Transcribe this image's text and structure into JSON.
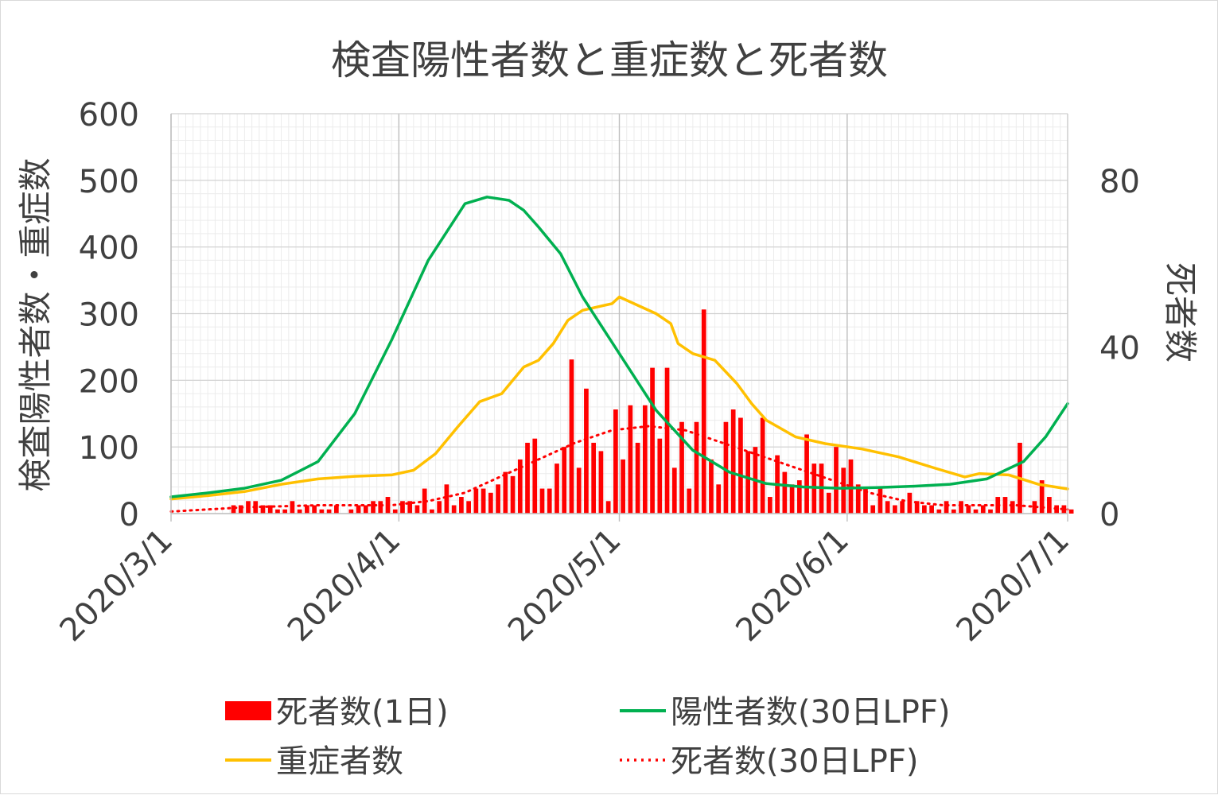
{
  "chart_data": {
    "type": "bar+line",
    "title": "検査陽性者数と重症数と死者数",
    "ylabel_left": "検査陽性者数・重症数",
    "ylabel_right": "死者数",
    "xlabel": "",
    "ylim_left": [
      0,
      600
    ],
    "ylim_right": [
      0,
      96
    ],
    "yticks_left": [
      "0",
      "100",
      "200",
      "300",
      "400",
      "500",
      "600"
    ],
    "yticks_right": [
      "0",
      "40",
      "80"
    ],
    "xlim": [
      "2020-03-01",
      "2020-07-01"
    ],
    "xticks": [
      "2020/3/1",
      "2020/4/1",
      "2020/5/1",
      "2020/6/1",
      "2020/7/1"
    ],
    "grid": true,
    "legend_position": "bottom",
    "colors": {
      "deaths_daily": "#ff0000",
      "positives_lpf": "#00b050",
      "severe": "#ffc000",
      "deaths_lpf": "#ff0000"
    },
    "series": [
      {
        "name": "死者数(1日)",
        "type": "bar",
        "axis": "right",
        "x": [
          "2020-03-09",
          "2020-03-10",
          "2020-03-11",
          "2020-03-12",
          "2020-03-13",
          "2020-03-14",
          "2020-03-15",
          "2020-03-16",
          "2020-03-17",
          "2020-03-18",
          "2020-03-19",
          "2020-03-20",
          "2020-03-21",
          "2020-03-22",
          "2020-03-23",
          "2020-03-24",
          "2020-03-25",
          "2020-03-26",
          "2020-03-27",
          "2020-03-28",
          "2020-03-29",
          "2020-03-30",
          "2020-03-31",
          "2020-04-01",
          "2020-04-02",
          "2020-04-03",
          "2020-04-04",
          "2020-04-05",
          "2020-04-06",
          "2020-04-07",
          "2020-04-08",
          "2020-04-09",
          "2020-04-10",
          "2020-04-11",
          "2020-04-12",
          "2020-04-13",
          "2020-04-14",
          "2020-04-15",
          "2020-04-16",
          "2020-04-17",
          "2020-04-18",
          "2020-04-19",
          "2020-04-20",
          "2020-04-21",
          "2020-04-22",
          "2020-04-23",
          "2020-04-24",
          "2020-04-25",
          "2020-04-26",
          "2020-04-27",
          "2020-04-28",
          "2020-04-29",
          "2020-04-30",
          "2020-05-01",
          "2020-05-02",
          "2020-05-03",
          "2020-05-04",
          "2020-05-05",
          "2020-05-06",
          "2020-05-07",
          "2020-05-08",
          "2020-05-09",
          "2020-05-10",
          "2020-05-11",
          "2020-05-12",
          "2020-05-13",
          "2020-05-14",
          "2020-05-15",
          "2020-05-16",
          "2020-05-17",
          "2020-05-18",
          "2020-05-19",
          "2020-05-20",
          "2020-05-21",
          "2020-05-22",
          "2020-05-23",
          "2020-05-24",
          "2020-05-25",
          "2020-05-26",
          "2020-05-27",
          "2020-05-28",
          "2020-05-29",
          "2020-05-30",
          "2020-05-31",
          "2020-06-01",
          "2020-06-02",
          "2020-06-03",
          "2020-06-04",
          "2020-06-05",
          "2020-06-06",
          "2020-06-07",
          "2020-06-08",
          "2020-06-09",
          "2020-06-10",
          "2020-06-11",
          "2020-06-12",
          "2020-06-13",
          "2020-06-14",
          "2020-06-15",
          "2020-06-16",
          "2020-06-17",
          "2020-06-18",
          "2020-06-19",
          "2020-06-20",
          "2020-06-21",
          "2020-06-22",
          "2020-06-23",
          "2020-06-24",
          "2020-06-25",
          "2020-06-26",
          "2020-06-27",
          "2020-06-28",
          "2020-06-29",
          "2020-06-30",
          "2020-07-01"
        ],
        "values": [
          2,
          2,
          3,
          3,
          2,
          2,
          1,
          1,
          3,
          1,
          2,
          2,
          1,
          1,
          2,
          0,
          1,
          2,
          2,
          3,
          3,
          4,
          1,
          3,
          3,
          2,
          6,
          1,
          3,
          7,
          2,
          4,
          3,
          6,
          6,
          5,
          7,
          10,
          9,
          13,
          17,
          18,
          6,
          6,
          12,
          16,
          37,
          11,
          30,
          17,
          15,
          3,
          25,
          13,
          26,
          17,
          26,
          35,
          18,
          35,
          11,
          22,
          6,
          22,
          49,
          13,
          7,
          22,
          25,
          23,
          15,
          16,
          23,
          4,
          14,
          10,
          7,
          8,
          19,
          12,
          12,
          5,
          16,
          11,
          13,
          7,
          6,
          2,
          6,
          3,
          2,
          3,
          5,
          3,
          2,
          2,
          1,
          3,
          1,
          3,
          2,
          1,
          2,
          1,
          4,
          4,
          3,
          17,
          0,
          3,
          8,
          4,
          2,
          2,
          1
        ]
      },
      {
        "name": "陽性者数(30日LPF)",
        "type": "line",
        "axis": "left",
        "x": [
          "2020-03-01",
          "2020-03-06",
          "2020-03-11",
          "2020-03-16",
          "2020-03-21",
          "2020-03-26",
          "2020-03-31",
          "2020-04-05",
          "2020-04-10",
          "2020-04-13",
          "2020-04-16",
          "2020-04-18",
          "2020-04-20",
          "2020-04-23",
          "2020-04-26",
          "2020-05-01",
          "2020-05-06",
          "2020-05-11",
          "2020-05-16",
          "2020-05-21",
          "2020-05-26",
          "2020-05-31",
          "2020-06-05",
          "2020-06-10",
          "2020-06-15",
          "2020-06-20",
          "2020-06-25",
          "2020-06-28",
          "2020-07-01"
        ],
        "values": [
          25,
          31,
          38,
          50,
          78,
          150,
          260,
          380,
          465,
          475,
          470,
          455,
          430,
          390,
          325,
          240,
          155,
          95,
          62,
          45,
          40,
          38,
          39,
          41,
          44,
          52,
          78,
          115,
          165
        ]
      },
      {
        "name": "重症者数",
        "type": "line",
        "axis": "left",
        "x": [
          "2020-03-01",
          "2020-03-06",
          "2020-03-11",
          "2020-03-16",
          "2020-03-21",
          "2020-03-26",
          "2020-03-31",
          "2020-04-03",
          "2020-04-06",
          "2020-04-09",
          "2020-04-12",
          "2020-04-15",
          "2020-04-18",
          "2020-04-20",
          "2020-04-22",
          "2020-04-24",
          "2020-04-26",
          "2020-04-28",
          "2020-04-30",
          "2020-05-01",
          "2020-05-04",
          "2020-05-06",
          "2020-05-08",
          "2020-05-09",
          "2020-05-11",
          "2020-05-14",
          "2020-05-17",
          "2020-05-19",
          "2020-05-21",
          "2020-05-25",
          "2020-05-29",
          "2020-06-03",
          "2020-06-08",
          "2020-06-13",
          "2020-06-17",
          "2020-06-19",
          "2020-06-23",
          "2020-06-27",
          "2020-07-01"
        ],
        "values": [
          22,
          27,
          33,
          44,
          52,
          56,
          58,
          65,
          90,
          130,
          168,
          180,
          220,
          230,
          255,
          290,
          305,
          310,
          315,
          325,
          310,
          300,
          285,
          255,
          240,
          230,
          195,
          165,
          140,
          115,
          105,
          97,
          85,
          68,
          55,
          60,
          58,
          44,
          37
        ]
      },
      {
        "name": "死者数(30日LPF)",
        "type": "line",
        "style": "dotted",
        "axis": "right",
        "x": [
          "2020-03-01",
          "2020-03-11",
          "2020-03-21",
          "2020-03-31",
          "2020-04-05",
          "2020-04-10",
          "2020-04-15",
          "2020-04-20",
          "2020-04-25",
          "2020-04-30",
          "2020-05-05",
          "2020-05-10",
          "2020-05-15",
          "2020-05-20",
          "2020-05-25",
          "2020-05-30",
          "2020-06-04",
          "2020-06-09",
          "2020-06-14",
          "2020-06-19",
          "2020-06-24",
          "2020-07-01"
        ],
        "values": [
          0.5,
          1.5,
          2,
          2,
          3,
          5,
          9,
          13,
          17,
          20,
          21,
          20,
          17,
          14,
          11,
          8,
          5,
          3,
          2,
          2,
          2,
          1
        ]
      }
    ]
  }
}
